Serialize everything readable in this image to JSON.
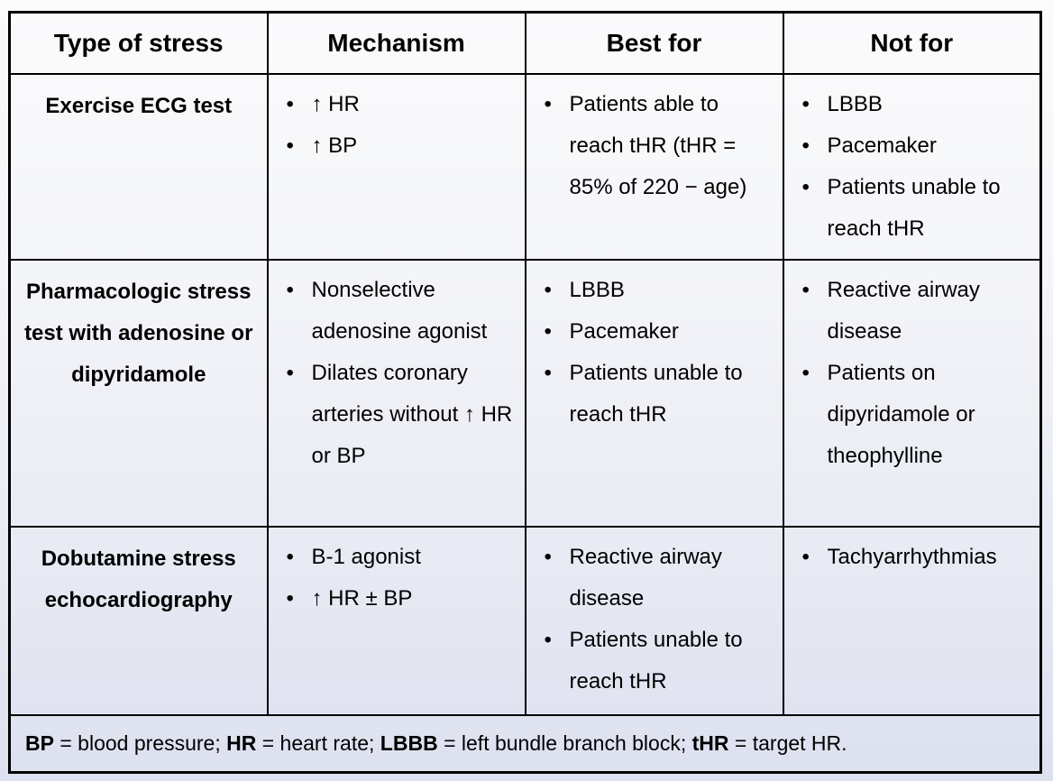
{
  "table": {
    "headers": [
      "Type of stress",
      "Mechanism",
      "Best for",
      "Not for"
    ],
    "rows": [
      {
        "type": "Exercise ECG test",
        "mechanism": [
          "↑ HR",
          "↑ BP"
        ],
        "best_for": [
          "Patients able to reach tHR (tHR = 85% of 220 − age)"
        ],
        "not_for": [
          "LBBB",
          "Pacemaker",
          "Patients unable to reach tHR"
        ]
      },
      {
        "type": "Pharmacologic stress test with adenosine or dipyridamole",
        "mechanism": [
          "Nonselective adenosine agonist",
          "Dilates coronary arteries without ↑ HR or BP"
        ],
        "best_for": [
          "LBBB",
          "Pacemaker",
          "Patients unable to reach tHR"
        ],
        "not_for": [
          "Reactive airway disease",
          "Patients on dipyridamole or theophylline"
        ]
      },
      {
        "type": "Dobutamine stress echocardiography",
        "mechanism": [
          "B-1 agonist",
          "↑ HR ± BP"
        ],
        "best_for": [
          "Reactive airway disease",
          "Patients unable to reach tHR"
        ],
        "not_for": [
          "Tachyarrhythmias"
        ]
      }
    ],
    "footnote_segments": [
      {
        "text": "BP",
        "bold": true
      },
      {
        "text": " = blood pressure; ",
        "bold": false
      },
      {
        "text": "HR",
        "bold": true
      },
      {
        "text": " = heart rate; ",
        "bold": false
      },
      {
        "text": "LBBB",
        "bold": true
      },
      {
        "text": " = left bundle branch block; ",
        "bold": false
      },
      {
        "text": "tHR",
        "bold": true
      },
      {
        "text": " = target HR.",
        "bold": false
      }
    ]
  },
  "colors": {
    "border": "#000000",
    "text": "#000000",
    "background_top": "#fbfbfc",
    "background_bottom": "#dde1ef"
  }
}
